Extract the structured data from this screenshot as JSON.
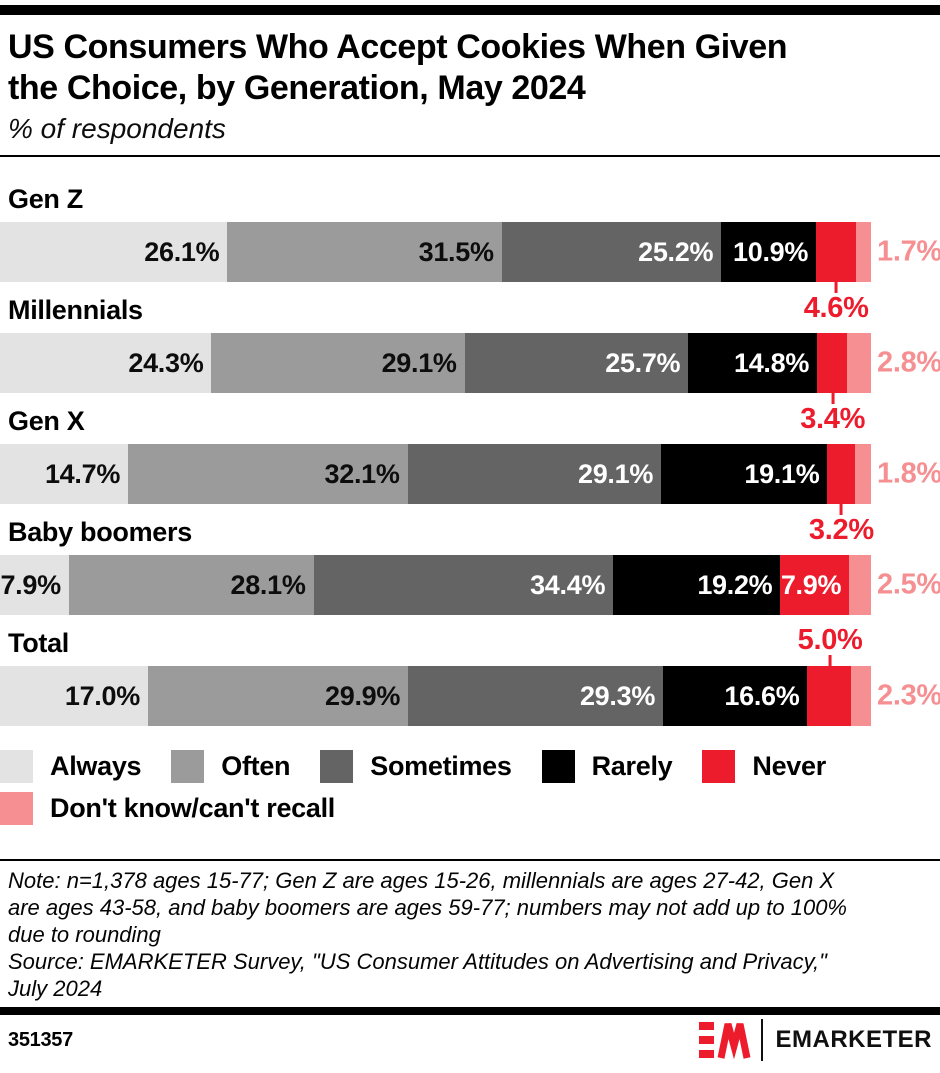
{
  "header": {
    "title_line1": "US Consumers Who Accept Cookies When Given",
    "title_line2": "the Choice, by Generation, May 2024",
    "subtitle": "% of respondents"
  },
  "chart_data": {
    "type": "bar",
    "orientation": "horizontal",
    "stacked": true,
    "unit": "% of respondents",
    "title": "US Consumers Who Accept Cookies When Given the Choice, by Generation, May 2024",
    "categories": [
      "Gen Z",
      "Millennials",
      "Gen X",
      "Baby boomers",
      "Total"
    ],
    "series": [
      {
        "name": "Always",
        "slug": "always",
        "color": "#e3e3e3",
        "label_color": "#0d0d0d",
        "values": [
          26.1,
          24.3,
          14.7,
          7.9,
          17.0
        ]
      },
      {
        "name": "Often",
        "slug": "often",
        "color": "#9b9b9b",
        "label_color": "#0d0d0d",
        "values": [
          31.5,
          29.1,
          32.1,
          28.1,
          29.9
        ]
      },
      {
        "name": "Sometimes",
        "slug": "sometimes",
        "color": "#646464",
        "label_color": "#ffffff",
        "values": [
          25.2,
          25.7,
          29.1,
          34.4,
          29.3
        ]
      },
      {
        "name": "Rarely",
        "slug": "rarely",
        "color": "#000000",
        "label_color": "#ffffff",
        "values": [
          10.9,
          14.8,
          19.1,
          19.2,
          16.6
        ]
      },
      {
        "name": "Never",
        "slug": "never",
        "color": "#ed1c2d",
        "label_color": "#ffffff",
        "values": [
          4.6,
          3.4,
          3.2,
          7.9,
          5.0
        ]
      },
      {
        "name": "Don't know/can't recall",
        "slug": "dont-know",
        "color": "#f68f92",
        "label_color": "#f68f92",
        "values": [
          1.7,
          2.8,
          1.8,
          2.5,
          2.3
        ]
      }
    ],
    "never_label_placement": [
      "below",
      "below",
      "below",
      "inside",
      "above"
    ],
    "axis_range": [
      0,
      100
    ],
    "grid": false,
    "legend_position": "bottom"
  },
  "legend": {
    "row1_series": [
      0,
      1,
      2,
      3,
      4
    ],
    "row2_series": [
      5
    ]
  },
  "note": {
    "lines": [
      "Note: n=1,378 ages 15-77; Gen Z are ages 15-26, millennials are ages 27-42, Gen X",
      "are ages 43-58, and baby boomers are ages 59-77; numbers may not add up to 100%",
      "due to rounding",
      "Source: EMARKETER Survey, \"US Consumer Attitudes on Advertising and Privacy,\"",
      "July 2024"
    ]
  },
  "footer": {
    "chart_id": "351357",
    "brand": "EMARKETER"
  },
  "colors": {
    "accent_red": "#ed1c2d",
    "light_red": "#f68f92",
    "black": "#000000"
  }
}
